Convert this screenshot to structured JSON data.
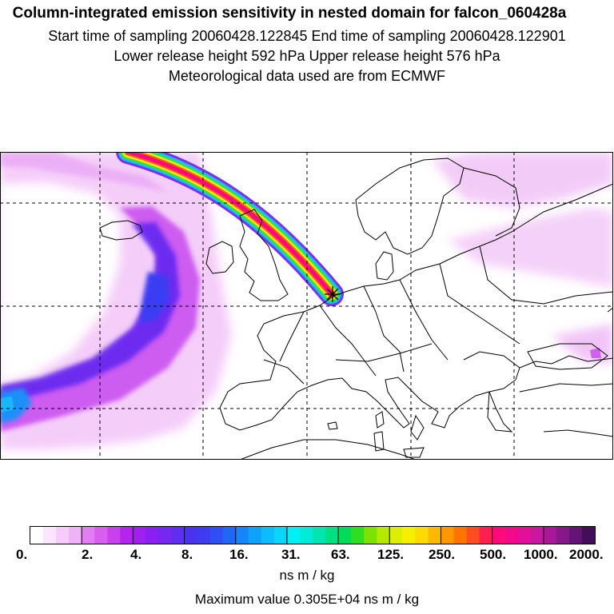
{
  "header": {
    "title": "Column-integrated emission sensitivity in nested domain for falcon_060428a",
    "sampling_line": "Start time of sampling 20060428.122845      End time of sampling 20060428.122901",
    "release_line": "Lower release height  592 hPa        Upper release height  576 hPa",
    "met_line": "Meteorological data used are from ECMWF"
  },
  "colorbar": {
    "labels": [
      "0.",
      "2.",
      "4.",
      "8.",
      "16.",
      "31.",
      "63.",
      "125.",
      "250.",
      "500.",
      "1000.",
      "2000."
    ],
    "units": "ns m / kg",
    "max_value_text": "Maximum value  0.305E+04 ns m / kg",
    "colors": [
      "#ffffff",
      "#fbe6fd",
      "#f5ccfb",
      "#eeb2f8",
      "#e47df3",
      "#d85ef0",
      "#c940ee",
      "#b424ee",
      "#9f1ff0",
      "#8b1ff2",
      "#7727f2",
      "#5f2ef0",
      "#4a33ee",
      "#3d3cf0",
      "#2f4ff2",
      "#1f68f5",
      "#1486f8",
      "#0ea2fb",
      "#0cbdfd",
      "#0ad5fd",
      "#00f0f5",
      "#00ecd8",
      "#00e6b0",
      "#00e080",
      "#00dc58",
      "#30de20",
      "#7ce200",
      "#b4ea00",
      "#dcef00",
      "#f6f000",
      "#ffda00",
      "#ffba00",
      "#ff9800",
      "#ff7400",
      "#ff4c20",
      "#ff2050",
      "#ff0a78",
      "#f4088c",
      "#e0109a",
      "#c818a0",
      "#a81898",
      "#86188a",
      "#641474",
      "#420e58"
    ]
  },
  "map": {
    "release_marker": "asterisk",
    "grid_lines": true
  }
}
